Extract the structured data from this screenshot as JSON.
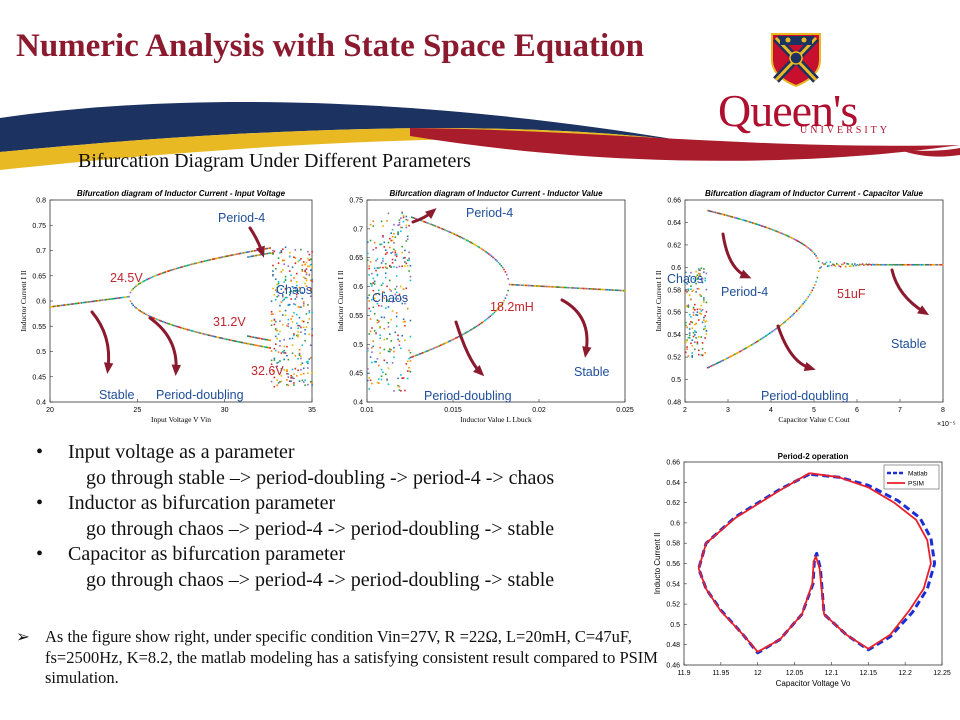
{
  "slide": {
    "title": "Numeric Analysis with State Space Equation",
    "subtitle": "Bifurcation Diagram Under Different Parameters",
    "logo": {
      "name": "Queen's",
      "sub": "UNIVERSITY"
    }
  },
  "charts": [
    {
      "title": "Bifurcation diagram of Inductor Current - Input Voltage",
      "xlabel": "Input Voltage V_in",
      "ylabel": "Inductor Current I_l",
      "xticks": [
        "20",
        "25",
        "30",
        "35"
      ],
      "yticks": [
        "0.4",
        "0.45",
        "0.5",
        "0.55",
        "0.6",
        "0.65",
        "0.7",
        "0.75",
        "0.8"
      ],
      "xlim": [
        20,
        35
      ],
      "ylim": [
        0.4,
        0.8
      ],
      "annotations": [
        {
          "text": "Period-4",
          "color": "#1f4e99"
        },
        {
          "text": "24.5V",
          "color": "#c0262d"
        },
        {
          "text": "Chaos",
          "color": "#1f4e99"
        },
        {
          "text": "31.2V",
          "color": "#c0262d"
        },
        {
          "text": "32.6V",
          "color": "#c0262d"
        },
        {
          "text": "Stable",
          "color": "#1f4e99"
        },
        {
          "text": "Period-doubling",
          "color": "#1f4e99"
        }
      ]
    },
    {
      "title": "Bifurcation diagram of Inductor Current - Inductor Value",
      "xlabel": "Inductor Value L_buck",
      "ylabel": "Inductor Current I_l",
      "xticks": [
        "0.01",
        "0.015",
        "0.02",
        "0.025"
      ],
      "yticks": [
        "0.4",
        "0.45",
        "0.5",
        "0.55",
        "0.6",
        "0.65",
        "0.7",
        "0.75"
      ],
      "xlim": [
        0.01,
        0.025
      ],
      "ylim": [
        0.4,
        0.75
      ],
      "annotations": [
        {
          "text": "Period-4",
          "color": "#1f4e99"
        },
        {
          "text": "Chaos",
          "color": "#1f4e99"
        },
        {
          "text": "18.2mH",
          "color": "#c0262d"
        },
        {
          "text": "Stable",
          "color": "#1f4e99"
        },
        {
          "text": "Period-doubling",
          "color": "#1f4e99"
        }
      ]
    },
    {
      "title": "Bifurcation diagram of Inductor Current - Capacitor Value",
      "xlabel": "Capacitor Value C_out",
      "ylabel": "Inductor Current I_l",
      "xticks": [
        "2",
        "3",
        "4",
        "5",
        "6",
        "7",
        "8"
      ],
      "yticks": [
        "0.48",
        "0.5",
        "0.52",
        "0.54",
        "0.56",
        "0.58",
        "0.6",
        "0.62",
        "0.64",
        "0.66"
      ],
      "xlim": [
        2,
        8
      ],
      "ylim": [
        0.48,
        0.66
      ],
      "exponent": "×10⁻⁵",
      "annotations": [
        {
          "text": "Chaos",
          "color": "#1f4e99"
        },
        {
          "text": "Period-4",
          "color": "#1f4e99"
        },
        {
          "text": "51uF",
          "color": "#c0262d"
        },
        {
          "text": "Stable",
          "color": "#1f4e99"
        },
        {
          "text": "Period-doubling",
          "color": "#1f4e99"
        }
      ]
    }
  ],
  "chart_data": {
    "type": "line",
    "title": "Period-2 operation",
    "xlabel": "Capacitor Voltage Vo",
    "ylabel": "Inducto Current Il",
    "xlim": [
      11.9,
      12.25
    ],
    "ylim": [
      0.46,
      0.66
    ],
    "xticks": [
      "11.9",
      "11.95",
      "12",
      "12.05",
      "12.1",
      "12.15",
      "12.2",
      "12.25"
    ],
    "yticks": [
      "0.46",
      "0.48",
      "0.5",
      "0.52",
      "0.54",
      "0.56",
      "0.58",
      "0.6",
      "0.62",
      "0.64",
      "0.66"
    ],
    "legend_position": "top-right",
    "series": [
      {
        "name": "Matlab",
        "color": "#1a2fd6",
        "style": "dashed",
        "x": [
          12.07,
          12.03,
          11.97,
          11.93,
          11.92,
          11.93,
          11.95,
          11.98,
          12.0,
          12.03,
          12.06,
          12.075,
          12.077,
          12.08,
          12.085,
          12.09,
          12.12,
          12.15,
          12.18,
          12.21,
          12.23,
          12.24,
          12.235,
          12.22,
          12.19,
          12.15,
          12.11,
          12.07
        ],
        "y": [
          0.648,
          0.633,
          0.606,
          0.58,
          0.555,
          0.535,
          0.514,
          0.49,
          0.472,
          0.485,
          0.51,
          0.54,
          0.565,
          0.57,
          0.555,
          0.51,
          0.49,
          0.475,
          0.488,
          0.512,
          0.535,
          0.56,
          0.585,
          0.605,
          0.622,
          0.637,
          0.645,
          0.648
        ]
      },
      {
        "name": "PSIM",
        "color": "#e8202a",
        "style": "solid",
        "x": [
          12.07,
          12.03,
          11.97,
          11.93,
          11.92,
          11.93,
          11.95,
          11.98,
          12.0,
          12.03,
          12.06,
          12.074,
          12.076,
          12.079,
          12.084,
          12.09,
          12.12,
          12.15,
          12.18,
          12.205,
          12.225,
          12.235,
          12.23,
          12.215,
          12.185,
          12.15,
          12.11,
          12.07
        ],
        "y": [
          0.649,
          0.632,
          0.605,
          0.58,
          0.555,
          0.535,
          0.513,
          0.49,
          0.473,
          0.485,
          0.51,
          0.54,
          0.562,
          0.567,
          0.555,
          0.51,
          0.49,
          0.476,
          0.49,
          0.513,
          0.535,
          0.56,
          0.583,
          0.603,
          0.62,
          0.635,
          0.645,
          0.649
        ]
      }
    ]
  },
  "bullets": [
    {
      "head": "Input voltage as a parameter",
      "sub": "go through stable –> period-doubling -> period-4 -> chaos"
    },
    {
      "head": "Inductor as bifurcation parameter",
      "sub": "go through chaos –> period-4 -> period-doubling -> stable"
    },
    {
      "head": "Capacitor as bifurcation parameter",
      "sub": "go through chaos –> period-4 -> period-doubling -> stable"
    }
  ],
  "note": "As the figure show right, under specific condition Vin=27V, R =22Ω, L=20mH, C=47uF, fs=2500Hz, K=8.2, the matlab modeling has a satisfying consistent result compared to PSIM simulation.",
  "colors": {
    "title": "#8b1a2e",
    "accent_red": "#c0262d",
    "accent_blue": "#1f4e99",
    "swoosh_navy": "#1c3260",
    "swoosh_gold": "#e8b923"
  }
}
